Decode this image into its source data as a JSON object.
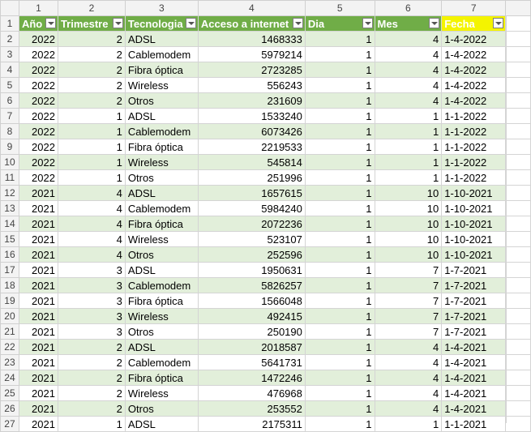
{
  "col_numbers": [
    "1",
    "2",
    "3",
    "4",
    "5",
    "6",
    "7"
  ],
  "headers": [
    "Año",
    "Trimestre",
    "Tecnologia",
    "Acceso a internet",
    "Dia",
    "Mes",
    "Fecha"
  ],
  "rows": [
    {
      "n": "2",
      "anio": "2022",
      "trim": "2",
      "tec": "ADSL",
      "acc": "1468333",
      "dia": "1",
      "mes": "4",
      "fecha": "1-4-2022"
    },
    {
      "n": "3",
      "anio": "2022",
      "trim": "2",
      "tec": "Cablemodem",
      "acc": "5979214",
      "dia": "1",
      "mes": "4",
      "fecha": "1-4-2022"
    },
    {
      "n": "4",
      "anio": "2022",
      "trim": "2",
      "tec": "Fibra óptica",
      "acc": "2723285",
      "dia": "1",
      "mes": "4",
      "fecha": "1-4-2022"
    },
    {
      "n": "5",
      "anio": "2022",
      "trim": "2",
      "tec": "Wireless",
      "acc": "556243",
      "dia": "1",
      "mes": "4",
      "fecha": "1-4-2022"
    },
    {
      "n": "6",
      "anio": "2022",
      "trim": "2",
      "tec": "Otros",
      "acc": "231609",
      "dia": "1",
      "mes": "4",
      "fecha": "1-4-2022"
    },
    {
      "n": "7",
      "anio": "2022",
      "trim": "1",
      "tec": "ADSL",
      "acc": "1533240",
      "dia": "1",
      "mes": "1",
      "fecha": "1-1-2022"
    },
    {
      "n": "8",
      "anio": "2022",
      "trim": "1",
      "tec": "Cablemodem",
      "acc": "6073426",
      "dia": "1",
      "mes": "1",
      "fecha": "1-1-2022"
    },
    {
      "n": "9",
      "anio": "2022",
      "trim": "1",
      "tec": "Fibra óptica",
      "acc": "2219533",
      "dia": "1",
      "mes": "1",
      "fecha": "1-1-2022"
    },
    {
      "n": "10",
      "anio": "2022",
      "trim": "1",
      "tec": "Wireless",
      "acc": "545814",
      "dia": "1",
      "mes": "1",
      "fecha": "1-1-2022"
    },
    {
      "n": "11",
      "anio": "2022",
      "trim": "1",
      "tec": "Otros",
      "acc": "251996",
      "dia": "1",
      "mes": "1",
      "fecha": "1-1-2022"
    },
    {
      "n": "12",
      "anio": "2021",
      "trim": "4",
      "tec": "ADSL",
      "acc": "1657615",
      "dia": "1",
      "mes": "10",
      "fecha": "1-10-2021"
    },
    {
      "n": "13",
      "anio": "2021",
      "trim": "4",
      "tec": "Cablemodem",
      "acc": "5984240",
      "dia": "1",
      "mes": "10",
      "fecha": "1-10-2021"
    },
    {
      "n": "14",
      "anio": "2021",
      "trim": "4",
      "tec": "Fibra óptica",
      "acc": "2072236",
      "dia": "1",
      "mes": "10",
      "fecha": "1-10-2021"
    },
    {
      "n": "15",
      "anio": "2021",
      "trim": "4",
      "tec": "Wireless",
      "acc": "523107",
      "dia": "1",
      "mes": "10",
      "fecha": "1-10-2021"
    },
    {
      "n": "16",
      "anio": "2021",
      "trim": "4",
      "tec": "Otros",
      "acc": "252596",
      "dia": "1",
      "mes": "10",
      "fecha": "1-10-2021"
    },
    {
      "n": "17",
      "anio": "2021",
      "trim": "3",
      "tec": "ADSL",
      "acc": "1950631",
      "dia": "1",
      "mes": "7",
      "fecha": "1-7-2021"
    },
    {
      "n": "18",
      "anio": "2021",
      "trim": "3",
      "tec": "Cablemodem",
      "acc": "5826257",
      "dia": "1",
      "mes": "7",
      "fecha": "1-7-2021"
    },
    {
      "n": "19",
      "anio": "2021",
      "trim": "3",
      "tec": "Fibra óptica",
      "acc": "1566048",
      "dia": "1",
      "mes": "7",
      "fecha": "1-7-2021"
    },
    {
      "n": "20",
      "anio": "2021",
      "trim": "3",
      "tec": "Wireless",
      "acc": "492415",
      "dia": "1",
      "mes": "7",
      "fecha": "1-7-2021"
    },
    {
      "n": "21",
      "anio": "2021",
      "trim": "3",
      "tec": "Otros",
      "acc": "250190",
      "dia": "1",
      "mes": "7",
      "fecha": "1-7-2021"
    },
    {
      "n": "22",
      "anio": "2021",
      "trim": "2",
      "tec": "ADSL",
      "acc": "2018587",
      "dia": "1",
      "mes": "4",
      "fecha": "1-4-2021"
    },
    {
      "n": "23",
      "anio": "2021",
      "trim": "2",
      "tec": "Cablemodem",
      "acc": "5641731",
      "dia": "1",
      "mes": "4",
      "fecha": "1-4-2021"
    },
    {
      "n": "24",
      "anio": "2021",
      "trim": "2",
      "tec": "Fibra óptica",
      "acc": "1472246",
      "dia": "1",
      "mes": "4",
      "fecha": "1-4-2021"
    },
    {
      "n": "25",
      "anio": "2021",
      "trim": "2",
      "tec": "Wireless",
      "acc": "476968",
      "dia": "1",
      "mes": "4",
      "fecha": "1-4-2021"
    },
    {
      "n": "26",
      "anio": "2021",
      "trim": "2",
      "tec": "Otros",
      "acc": "253552",
      "dia": "1",
      "mes": "4",
      "fecha": "1-4-2021"
    },
    {
      "n": "27",
      "anio": "2021",
      "trim": "1",
      "tec": "ADSL",
      "acc": "2175311",
      "dia": "1",
      "mes": "1",
      "fecha": "1-1-2021"
    }
  ],
  "colors": {
    "header_green": "#70ad47",
    "band_green": "#e2efda",
    "highlight_yellow": "#f4f400"
  }
}
